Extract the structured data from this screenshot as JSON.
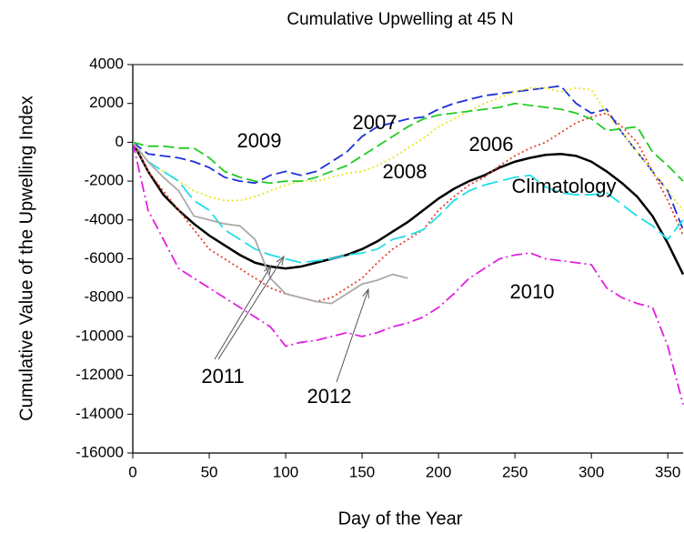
{
  "chart_data": {
    "type": "line",
    "title": "Cumulative Upwelling at 45 N",
    "x_label": "Day of the Year",
    "y_label": "Cumulative Value of the Upwelling Index",
    "x": [
      0,
      10,
      20,
      30,
      40,
      50,
      60,
      70,
      80,
      90,
      100,
      110,
      120,
      130,
      140,
      150,
      160,
      170,
      180,
      190,
      200,
      210,
      220,
      230,
      240,
      250,
      260,
      270,
      280,
      290,
      300,
      310,
      320,
      330,
      340,
      350,
      360
    ],
    "xlim": [
      0,
      360
    ],
    "xticks": [
      0,
      50,
      100,
      150,
      200,
      250,
      300,
      350
    ],
    "ylim": [
      -16000,
      4000
    ],
    "yticks": [
      4000,
      2000,
      0,
      -2000,
      -4000,
      -6000,
      -8000,
      -10000,
      -12000,
      -14000,
      -16000
    ],
    "series": [
      {
        "name": "Climatology",
        "color": "#000000",
        "style": "solid",
        "values": [
          0,
          -1500,
          -2700,
          -3500,
          -4200,
          -4800,
          -5300,
          -5800,
          -6200,
          -6400,
          -6500,
          -6400,
          -6200,
          -6000,
          -5800,
          -5500,
          -5100,
          -4600,
          -4100,
          -3500,
          -2900,
          -2400,
          -2000,
          -1700,
          -1300,
          -1000,
          -800,
          -650,
          -600,
          -700,
          -1000,
          -1500,
          -2100,
          -2800,
          -3800,
          -5200,
          -6800
        ]
      },
      {
        "name": "2006",
        "color": "#e8402c",
        "style": "dotted",
        "values": [
          0,
          -1500,
          -2500,
          -3500,
          -4500,
          -5500,
          -6000,
          -6500,
          -7000,
          -7500,
          -7800,
          -8000,
          -8200,
          -8000,
          -7500,
          -7000,
          -6200,
          -5500,
          -5000,
          -4500,
          -3500,
          -2800,
          -2200,
          -1800,
          -1200,
          -700,
          -300,
          0,
          500,
          1000,
          1300,
          1500,
          800,
          0,
          -1500,
          -3000,
          -4800
        ]
      },
      {
        "name": "2007",
        "color": "#1c2fd8",
        "style": "dashed",
        "values": [
          0,
          -600,
          -700,
          -800,
          -1000,
          -1300,
          -1800,
          -2000,
          -2100,
          -1700,
          -1500,
          -1700,
          -1500,
          -1000,
          -500,
          300,
          800,
          1000,
          1200,
          1300,
          1700,
          2000,
          2200,
          2400,
          2500,
          2600,
          2700,
          2800,
          2900,
          2000,
          1500,
          1700,
          500,
          -500,
          -1500,
          -2500,
          -4500
        ]
      },
      {
        "name": "2008",
        "color": "#e6e61e",
        "style": "dotted",
        "values": [
          0,
          -1000,
          -1500,
          -2000,
          -2500,
          -2800,
          -3000,
          -3000,
          -2800,
          -2500,
          -2200,
          -2000,
          -2000,
          -1800,
          -1600,
          -1500,
          -1200,
          -800,
          -300,
          200,
          800,
          1200,
          1600,
          2000,
          2300,
          2600,
          2800,
          2800,
          2600,
          2800,
          2700,
          1500,
          500,
          -500,
          -1500,
          -2500,
          -3500
        ]
      },
      {
        "name": "2009",
        "color": "#22cc22",
        "style": "dashed",
        "values": [
          0,
          -200,
          -200,
          -300,
          -300,
          -800,
          -1500,
          -1800,
          -2000,
          -2100,
          -2000,
          -2000,
          -1800,
          -1500,
          -1200,
          -700,
          -200,
          300,
          800,
          1200,
          1400,
          1500,
          1600,
          1700,
          1800,
          2000,
          1900,
          1800,
          1700,
          1500,
          1200,
          600,
          700,
          800,
          -500,
          -1200,
          -2000
        ]
      },
      {
        "name": "2010",
        "color": "#e020e0",
        "style": "dashdot",
        "values": [
          0,
          -3500,
          -5000,
          -6500,
          -7000,
          -7500,
          -8000,
          -8500,
          -9000,
          -9500,
          -10500,
          -10300,
          -10200,
          -10000,
          -9800,
          -10000,
          -9800,
          -9500,
          -9300,
          -9000,
          -8500,
          -7800,
          -7000,
          -6500,
          -6000,
          -5800,
          -5700,
          -6000,
          -6100,
          -6200,
          -6300,
          -7500,
          -8000,
          -8300,
          -8500,
          -10500,
          -13500
        ]
      },
      {
        "name": "2011",
        "color": "#22dde8",
        "style": "longdash",
        "values": [
          0,
          -1000,
          -1500,
          -2000,
          -3000,
          -3500,
          -4500,
          -5000,
          -5500,
          -5800,
          -6000,
          -6200,
          -6100,
          -6000,
          -5800,
          -5700,
          -5500,
          -5000,
          -4800,
          -4500,
          -3800,
          -3000,
          -2500,
          -2200,
          -2000,
          -1800,
          -1700,
          -2300,
          -2600,
          -2700,
          -2700,
          -2600,
          -3200,
          -3800,
          -4300,
          -5000,
          -4000
        ]
      },
      {
        "name": "2012",
        "color": "#aaaaaa",
        "style": "solid",
        "values": [
          0,
          -1000,
          -1800,
          -2500,
          -3800,
          -4000,
          -4200,
          -4300,
          -5000,
          -7000,
          -7800,
          -8000,
          -8200,
          -8300,
          -7800,
          -7300,
          -7100,
          -6800,
          -7000,
          null,
          null,
          null,
          null,
          null,
          null,
          null,
          null,
          null,
          null,
          null,
          null,
          null,
          null,
          null,
          null,
          null,
          null
        ]
      }
    ]
  }
}
